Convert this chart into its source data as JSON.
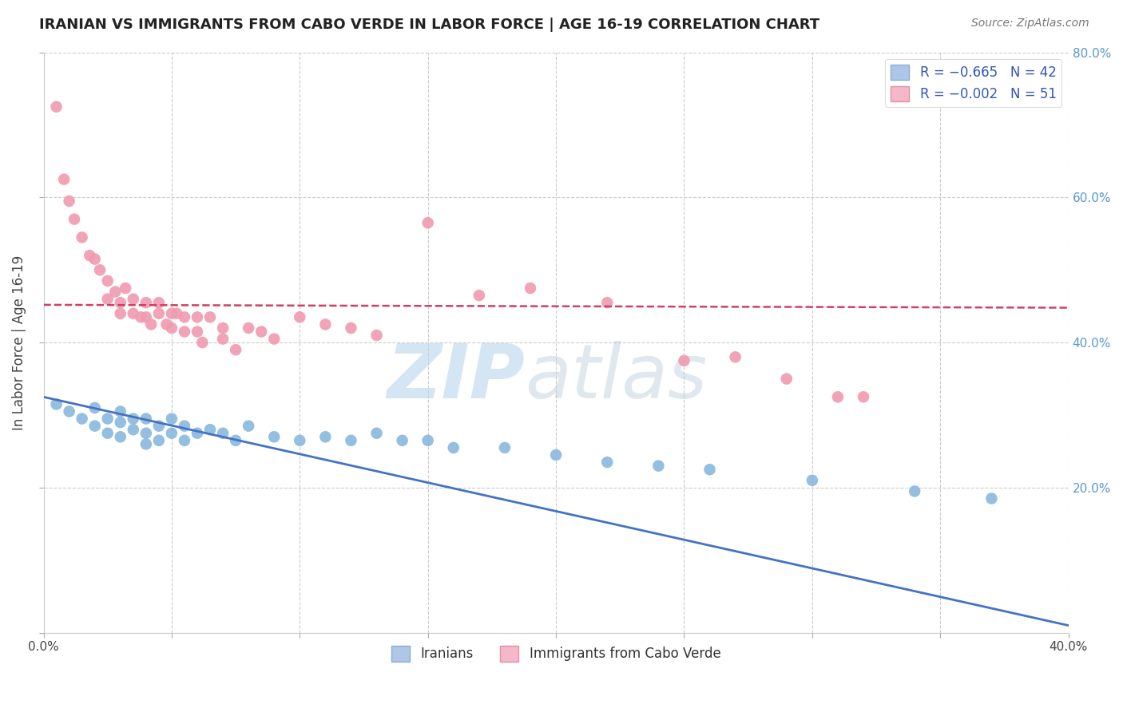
{
  "title": "IRANIAN VS IMMIGRANTS FROM CABO VERDE IN LABOR FORCE | AGE 16-19 CORRELATION CHART",
  "source": "Source: ZipAtlas.com",
  "ylabel": "In Labor Force | Age 16-19",
  "xlim": [
    0.0,
    0.4
  ],
  "ylim": [
    0.0,
    0.8
  ],
  "xticks": [
    0.0,
    0.05,
    0.1,
    0.15,
    0.2,
    0.25,
    0.3,
    0.35,
    0.4
  ],
  "yticks": [
    0.0,
    0.2,
    0.4,
    0.6,
    0.8
  ],
  "xticklabels": [
    "0.0%",
    "",
    "",
    "",
    "",
    "",
    "",
    "",
    "40.0%"
  ],
  "yticklabels_right": [
    "",
    "20.0%",
    "40.0%",
    "60.0%",
    "80.0%"
  ],
  "blue_color": "#89b8de",
  "pink_color": "#f09ab0",
  "blue_line_color": "#4472c4",
  "pink_line_color": "#d04060",
  "background_color": "#ffffff",
  "grid_color": "#cccccc",
  "legend_blue_face": "#aec6e8",
  "legend_pink_face": "#f4b8c8",
  "iranians_x": [
    0.005,
    0.01,
    0.015,
    0.02,
    0.02,
    0.025,
    0.025,
    0.03,
    0.03,
    0.03,
    0.035,
    0.035,
    0.04,
    0.04,
    0.04,
    0.045,
    0.045,
    0.05,
    0.05,
    0.055,
    0.055,
    0.06,
    0.065,
    0.07,
    0.075,
    0.08,
    0.09,
    0.1,
    0.11,
    0.12,
    0.13,
    0.14,
    0.15,
    0.16,
    0.18,
    0.2,
    0.22,
    0.24,
    0.26,
    0.3,
    0.34,
    0.37
  ],
  "iranians_y": [
    0.315,
    0.305,
    0.295,
    0.31,
    0.285,
    0.295,
    0.275,
    0.305,
    0.29,
    0.27,
    0.295,
    0.28,
    0.295,
    0.275,
    0.26,
    0.285,
    0.265,
    0.295,
    0.275,
    0.285,
    0.265,
    0.275,
    0.28,
    0.275,
    0.265,
    0.285,
    0.27,
    0.265,
    0.27,
    0.265,
    0.275,
    0.265,
    0.265,
    0.255,
    0.255,
    0.245,
    0.235,
    0.23,
    0.225,
    0.21,
    0.195,
    0.185
  ],
  "cabo_verde_x": [
    0.005,
    0.008,
    0.01,
    0.012,
    0.015,
    0.018,
    0.02,
    0.022,
    0.025,
    0.025,
    0.028,
    0.03,
    0.03,
    0.032,
    0.035,
    0.035,
    0.038,
    0.04,
    0.04,
    0.042,
    0.045,
    0.045,
    0.048,
    0.05,
    0.05,
    0.052,
    0.055,
    0.055,
    0.06,
    0.06,
    0.062,
    0.065,
    0.07,
    0.07,
    0.075,
    0.08,
    0.085,
    0.09,
    0.1,
    0.11,
    0.12,
    0.13,
    0.15,
    0.17,
    0.19,
    0.22,
    0.25,
    0.27,
    0.29,
    0.31,
    0.32
  ],
  "cabo_verde_y": [
    0.725,
    0.625,
    0.595,
    0.57,
    0.545,
    0.52,
    0.515,
    0.5,
    0.485,
    0.46,
    0.47,
    0.455,
    0.44,
    0.475,
    0.46,
    0.44,
    0.435,
    0.455,
    0.435,
    0.425,
    0.455,
    0.44,
    0.425,
    0.44,
    0.42,
    0.44,
    0.435,
    0.415,
    0.435,
    0.415,
    0.4,
    0.435,
    0.42,
    0.405,
    0.39,
    0.42,
    0.415,
    0.405,
    0.435,
    0.425,
    0.42,
    0.41,
    0.565,
    0.465,
    0.475,
    0.455,
    0.375,
    0.38,
    0.35,
    0.325,
    0.325
  ],
  "iran_trend_x": [
    0.0,
    0.4
  ],
  "iran_trend_y": [
    0.325,
    0.01
  ],
  "cabo_trend_y": [
    0.452,
    0.448
  ],
  "watermark_zip": "ZIP",
  "watermark_atlas": "atlas"
}
